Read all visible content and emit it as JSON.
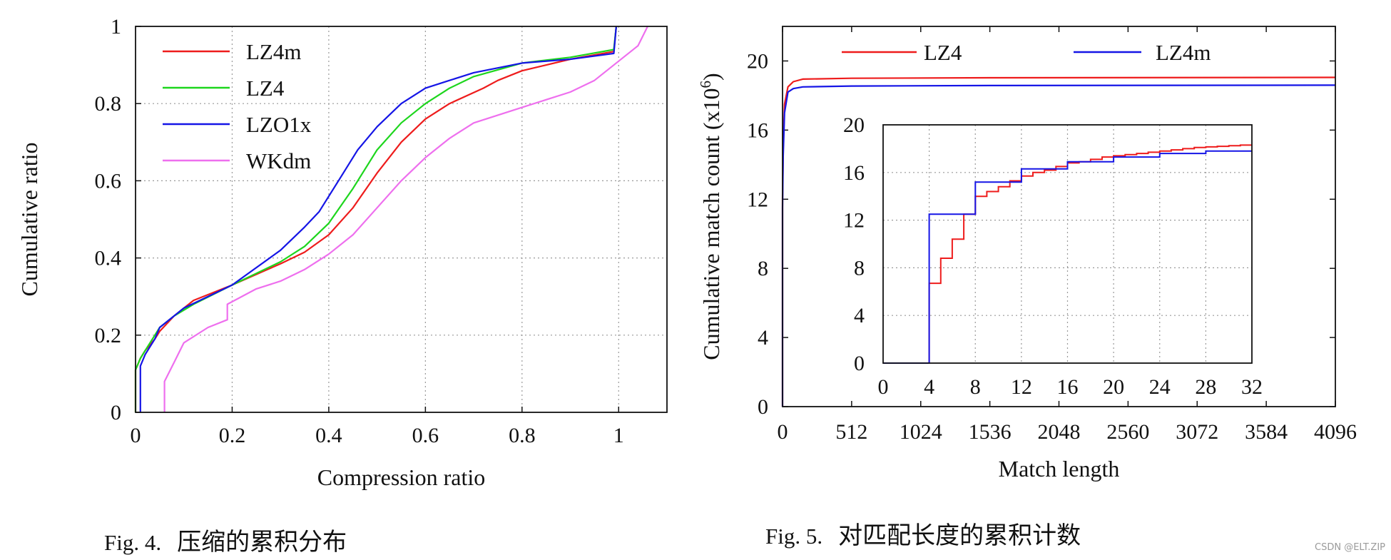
{
  "chart_data": [
    {
      "type": "line",
      "title": "",
      "xlabel": "Compression ratio",
      "ylabel": "Cumulative ratio",
      "xlim": [
        0,
        1.1
      ],
      "ylim": [
        0,
        1
      ],
      "grid": true,
      "legend_position": "top-left",
      "x_ticks": [
        "0",
        "0.2",
        "0.4",
        "0.6",
        "0.8",
        "1"
      ],
      "y_ticks": [
        "0",
        "0.2",
        "0.4",
        "0.6",
        "0.8",
        "1"
      ],
      "series": [
        {
          "name": "LZ4m",
          "color": "#ee1c1c",
          "points": [
            [
              0.0,
              0.0
            ],
            [
              0.0,
              0.11
            ],
            [
              0.01,
              0.14
            ],
            [
              0.02,
              0.16
            ],
            [
              0.04,
              0.19
            ],
            [
              0.05,
              0.21
            ],
            [
              0.08,
              0.25
            ],
            [
              0.12,
              0.29
            ],
            [
              0.2,
              0.33
            ],
            [
              0.3,
              0.385
            ],
            [
              0.35,
              0.415
            ],
            [
              0.4,
              0.46
            ],
            [
              0.45,
              0.53
            ],
            [
              0.5,
              0.62
            ],
            [
              0.55,
              0.7
            ],
            [
              0.6,
              0.76
            ],
            [
              0.65,
              0.8
            ],
            [
              0.72,
              0.84
            ],
            [
              0.75,
              0.86
            ],
            [
              0.8,
              0.885
            ],
            [
              0.9,
              0.915
            ],
            [
              0.99,
              0.935
            ],
            [
              0.995,
              1.0
            ]
          ]
        },
        {
          "name": "LZ4",
          "color": "#1dd61d",
          "points": [
            [
              0.0,
              0.0
            ],
            [
              0.0,
              0.11
            ],
            [
              0.01,
              0.14
            ],
            [
              0.02,
              0.16
            ],
            [
              0.04,
              0.2
            ],
            [
              0.05,
              0.22
            ],
            [
              0.08,
              0.25
            ],
            [
              0.12,
              0.28
            ],
            [
              0.2,
              0.33
            ],
            [
              0.3,
              0.39
            ],
            [
              0.35,
              0.43
            ],
            [
              0.4,
              0.49
            ],
            [
              0.45,
              0.58
            ],
            [
              0.5,
              0.68
            ],
            [
              0.55,
              0.75
            ],
            [
              0.6,
              0.8
            ],
            [
              0.65,
              0.84
            ],
            [
              0.7,
              0.87
            ],
            [
              0.8,
              0.905
            ],
            [
              0.9,
              0.92
            ],
            [
              0.99,
              0.94
            ],
            [
              0.995,
              1.0
            ]
          ]
        },
        {
          "name": "LZO1x",
          "color": "#1515e6",
          "points": [
            [
              0.01,
              0.0
            ],
            [
              0.01,
              0.12
            ],
            [
              0.02,
              0.15
            ],
            [
              0.03,
              0.17
            ],
            [
              0.04,
              0.19
            ],
            [
              0.05,
              0.22
            ],
            [
              0.1,
              0.27
            ],
            [
              0.2,
              0.33
            ],
            [
              0.3,
              0.42
            ],
            [
              0.35,
              0.48
            ],
            [
              0.38,
              0.52
            ],
            [
              0.42,
              0.6
            ],
            [
              0.46,
              0.68
            ],
            [
              0.5,
              0.74
            ],
            [
              0.55,
              0.8
            ],
            [
              0.6,
              0.84
            ],
            [
              0.65,
              0.86
            ],
            [
              0.7,
              0.88
            ],
            [
              0.8,
              0.905
            ],
            [
              0.9,
              0.915
            ],
            [
              0.99,
              0.93
            ],
            [
              0.995,
              1.0
            ]
          ]
        },
        {
          "name": "WKdm",
          "color": "#ee6fee",
          "points": [
            [
              0.06,
              0.0
            ],
            [
              0.06,
              0.08
            ],
            [
              0.08,
              0.13
            ],
            [
              0.1,
              0.18
            ],
            [
              0.15,
              0.22
            ],
            [
              0.19,
              0.24
            ],
            [
              0.19,
              0.28
            ],
            [
              0.25,
              0.32
            ],
            [
              0.3,
              0.34
            ],
            [
              0.35,
              0.37
            ],
            [
              0.4,
              0.41
            ],
            [
              0.45,
              0.46
            ],
            [
              0.5,
              0.53
            ],
            [
              0.55,
              0.6
            ],
            [
              0.6,
              0.66
            ],
            [
              0.65,
              0.71
            ],
            [
              0.7,
              0.75
            ],
            [
              0.8,
              0.79
            ],
            [
              0.9,
              0.83
            ],
            [
              0.95,
              0.86
            ],
            [
              1.0,
              0.91
            ],
            [
              1.04,
              0.95
            ],
            [
              1.06,
              1.0
            ]
          ]
        }
      ]
    },
    {
      "type": "line",
      "title": "",
      "xlabel": "Match length",
      "ylabel": "Cumulative match count (x10",
      "ylabel_exponent": "6",
      "ylabel_close": ")",
      "xlim": [
        0,
        4096
      ],
      "ylim": [
        0,
        22
      ],
      "grid": false,
      "legend_position": "top",
      "x_ticks": [
        "0",
        "512",
        "1024",
        "1536",
        "2048",
        "2560",
        "3072",
        "3584",
        "4096"
      ],
      "y_ticks": [
        "0",
        "4",
        "8",
        "12",
        "16",
        "20"
      ],
      "series": [
        {
          "name": "LZ4",
          "color": "#ee1c1c",
          "points": [
            [
              0,
              0
            ],
            [
              0,
              12
            ],
            [
              5,
              15
            ],
            [
              15,
              17.5
            ],
            [
              40,
              18.5
            ],
            [
              80,
              18.8
            ],
            [
              150,
              18.95
            ],
            [
              512,
              19.0
            ],
            [
              1536,
              19.03
            ],
            [
              4096,
              19.05
            ]
          ]
        },
        {
          "name": "LZ4m",
          "color": "#1515e6",
          "points": [
            [
              0,
              0
            ],
            [
              0,
              11.5
            ],
            [
              5,
              14.5
            ],
            [
              15,
              17
            ],
            [
              40,
              18.2
            ],
            [
              80,
              18.4
            ],
            [
              150,
              18.5
            ],
            [
              512,
              18.55
            ],
            [
              1536,
              18.58
            ],
            [
              4096,
              18.6
            ]
          ]
        }
      ],
      "inset": {
        "xlim": [
          0,
          32
        ],
        "ylim": [
          0,
          20
        ],
        "grid": true,
        "x_ticks": [
          "0",
          "4",
          "8",
          "12",
          "16",
          "20",
          "24",
          "28",
          "32"
        ],
        "y_ticks": [
          "0",
          "4",
          "8",
          "12",
          "16",
          "20"
        ],
        "series": [
          {
            "name": "LZ4",
            "color": "#ee1c1c",
            "points": [
              [
                0,
                0
              ],
              [
                4,
                0
              ],
              [
                4,
                6.7
              ],
              [
                5,
                6.7
              ],
              [
                5,
                8.8
              ],
              [
                6,
                8.8
              ],
              [
                6,
                10.4
              ],
              [
                7,
                10.4
              ],
              [
                7,
                12.5
              ],
              [
                8,
                12.5
              ],
              [
                8,
                14.0
              ],
              [
                9,
                14.0
              ],
              [
                9,
                14.4
              ],
              [
                10,
                14.4
              ],
              [
                10,
                14.8
              ],
              [
                11,
                14.8
              ],
              [
                11,
                15.3
              ],
              [
                12,
                15.3
              ],
              [
                12,
                15.7
              ],
              [
                13,
                15.7
              ],
              [
                13,
                16.0
              ],
              [
                14,
                16.0
              ],
              [
                14,
                16.2
              ],
              [
                15,
                16.2
              ],
              [
                15,
                16.5
              ],
              [
                16,
                16.5
              ],
              [
                16,
                16.8
              ],
              [
                17,
                16.8
              ],
              [
                17,
                16.9
              ],
              [
                18,
                16.9
              ],
              [
                18,
                17.1
              ],
              [
                19,
                17.1
              ],
              [
                19,
                17.3
              ],
              [
                20,
                17.3
              ],
              [
                20,
                17.4
              ],
              [
                21,
                17.4
              ],
              [
                21,
                17.5
              ],
              [
                22,
                17.5
              ],
              [
                22,
                17.6
              ],
              [
                23,
                17.6
              ],
              [
                23,
                17.7
              ],
              [
                24,
                17.7
              ],
              [
                24,
                17.8
              ],
              [
                25,
                17.8
              ],
              [
                25,
                17.9
              ],
              [
                26,
                17.9
              ],
              [
                26,
                18.0
              ],
              [
                27,
                18.0
              ],
              [
                27,
                18.1
              ],
              [
                28,
                18.1
              ],
              [
                28,
                18.15
              ],
              [
                29,
                18.15
              ],
              [
                29,
                18.2
              ],
              [
                30,
                18.2
              ],
              [
                30,
                18.25
              ],
              [
                31,
                18.25
              ],
              [
                31,
                18.3
              ],
              [
                32,
                18.3
              ]
            ]
          },
          {
            "name": "LZ4m",
            "color": "#1515e6",
            "points": [
              [
                0,
                0
              ],
              [
                4,
                0
              ],
              [
                4,
                12.5
              ],
              [
                8,
                12.5
              ],
              [
                8,
                15.2
              ],
              [
                12,
                15.2
              ],
              [
                12,
                16.3
              ],
              [
                16,
                16.3
              ],
              [
                16,
                16.9
              ],
              [
                20,
                16.9
              ],
              [
                20,
                17.3
              ],
              [
                24,
                17.3
              ],
              [
                24,
                17.6
              ],
              [
                28,
                17.6
              ],
              [
                28,
                17.8
              ],
              [
                32,
                17.8
              ]
            ]
          }
        ]
      }
    }
  ],
  "captions": {
    "fig4_num": "Fig. 4.",
    "fig4_text": "压缩的累积分布",
    "fig5_num": "Fig. 5.",
    "fig5_text": "对匹配长度的累积计数"
  },
  "watermark": "CSDN @ELT.ZIP"
}
